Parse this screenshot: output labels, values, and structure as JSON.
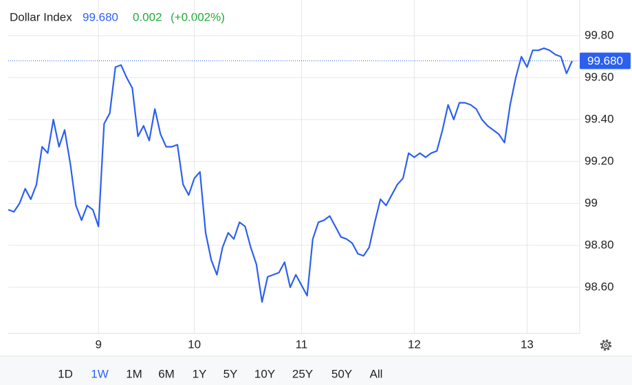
{
  "header": {
    "name": "Dollar Index",
    "price": "99.680",
    "change": "0.002",
    "change_pct": "(+0.002%)"
  },
  "chart_data": {
    "type": "line",
    "color": "#2b5ff0",
    "categories": [
      null,
      null,
      null,
      null,
      null,
      null,
      null,
      null,
      null,
      null,
      null,
      null,
      null,
      null,
      null,
      null,
      "9",
      null,
      null,
      null,
      null,
      null,
      null,
      null,
      null,
      null,
      null,
      null,
      null,
      null,
      null,
      null,
      null,
      "10",
      null,
      null,
      null,
      null,
      null,
      null,
      null,
      null,
      null,
      null,
      null,
      null,
      null,
      null,
      null,
      null,
      null,
      null,
      "11",
      null,
      null,
      null,
      null,
      null,
      null,
      null,
      null,
      null,
      null,
      null,
      null,
      null,
      null,
      null,
      null,
      null,
      null,
      null,
      "12",
      null,
      null,
      null,
      null,
      null,
      null,
      null,
      null,
      null,
      null,
      null,
      null,
      null,
      null,
      null,
      null,
      null,
      null,
      null,
      "13",
      null,
      null,
      null,
      null,
      null,
      null,
      null,
      null
    ],
    "values": [
      98.97,
      98.96,
      99.0,
      99.07,
      99.02,
      99.09,
      99.27,
      99.24,
      99.4,
      99.27,
      99.35,
      99.19,
      98.99,
      98.92,
      98.99,
      98.97,
      98.89,
      99.38,
      99.43,
      99.65,
      99.66,
      99.6,
      99.55,
      99.32,
      99.37,
      99.3,
      99.45,
      99.33,
      99.27,
      99.27,
      99.28,
      99.09,
      99.04,
      99.12,
      99.15,
      98.86,
      98.73,
      98.66,
      98.79,
      98.86,
      98.83,
      98.91,
      98.89,
      98.79,
      98.71,
      98.53,
      98.65,
      98.66,
      98.67,
      98.72,
      98.6,
      98.66,
      98.61,
      98.56,
      98.83,
      98.91,
      98.92,
      98.94,
      98.89,
      98.84,
      98.83,
      98.81,
      98.76,
      98.75,
      98.79,
      98.91,
      99.02,
      98.99,
      99.04,
      99.09,
      99.12,
      99.24,
      99.22,
      99.24,
      99.22,
      99.24,
      99.25,
      99.35,
      99.47,
      99.4,
      99.48,
      99.48,
      99.47,
      99.45,
      99.4,
      99.37,
      99.35,
      99.33,
      99.29,
      99.47,
      99.6,
      99.7,
      99.65,
      99.73,
      99.73,
      99.74,
      99.73,
      99.71,
      99.7,
      99.62,
      99.68
    ],
    "ylim": [
      98.38,
      99.97
    ],
    "yticks": [
      {
        "value": 98.6,
        "label": "98.60"
      },
      {
        "value": 98.8,
        "label": "98.80"
      },
      99,
      {
        "value": 99.2,
        "label": "99.20"
      },
      {
        "value": 99.4,
        "label": "99.40"
      },
      {
        "value": 99.6,
        "label": "99.60"
      },
      {
        "value": 99.8,
        "label": "99.80"
      }
    ],
    "grid": true,
    "last_price": {
      "value": 99.68,
      "label": "99.680"
    }
  },
  "ui": {
    "ranges": [
      "1D",
      "1W",
      "1M",
      "6M",
      "1Y",
      "5Y",
      "10Y",
      "25Y",
      "50Y",
      "All"
    ],
    "active": 1
  }
}
